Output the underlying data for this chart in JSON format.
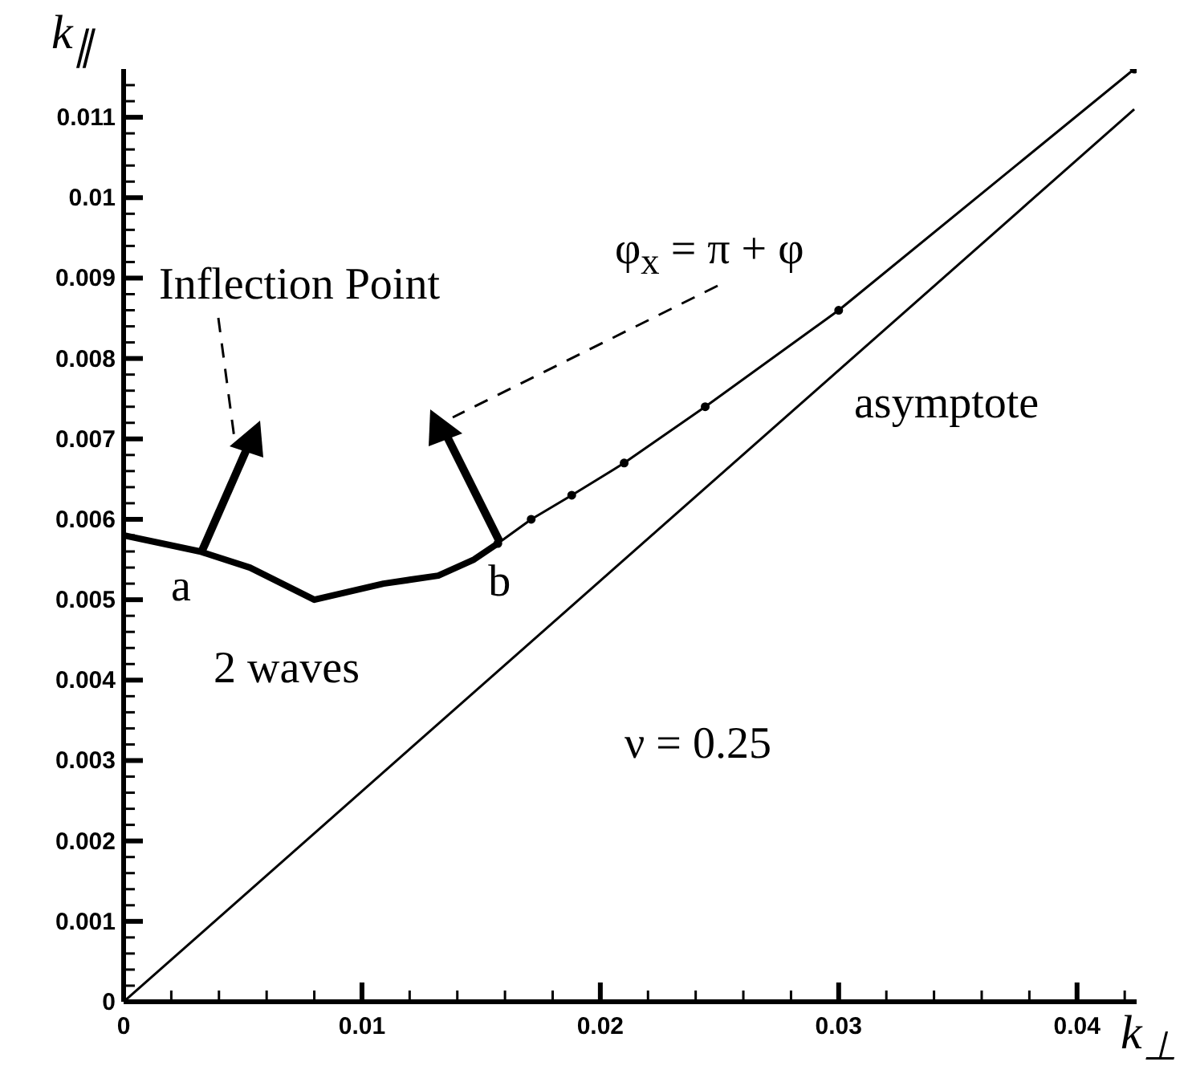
{
  "chart_data": {
    "type": "line",
    "xlabel": "k$_{⊥}$",
    "ylabel": "k$_{∥}$",
    "xlim": [
      0,
      0.0425
    ],
    "ylim": [
      0,
      0.0116
    ],
    "xticks": [
      0,
      {
        "value": 0.002,
        "label": null
      },
      {
        "value": 0.004,
        "label": null
      },
      {
        "value": 0.006,
        "label": null
      },
      {
        "value": 0.008,
        "label": null
      },
      0.01,
      {
        "value": 0.012,
        "label": null
      },
      {
        "value": 0.014,
        "label": null
      },
      {
        "value": 0.016,
        "label": null
      },
      {
        "value": 0.018,
        "label": null
      },
      0.02,
      {
        "value": 0.022,
        "label": null
      },
      {
        "value": 0.024,
        "label": null
      },
      {
        "value": 0.026,
        "label": null
      },
      {
        "value": 0.028,
        "label": null
      },
      0.03,
      {
        "value": 0.032,
        "label": null
      },
      {
        "value": 0.034,
        "label": null
      },
      {
        "value": 0.036,
        "label": null
      },
      {
        "value": 0.038,
        "label": null
      },
      0.04,
      {
        "value": 0.042,
        "label": null
      }
    ],
    "yticks": [
      0,
      {
        "value": 0.0002,
        "label": null
      },
      {
        "value": 0.0004,
        "label": null
      },
      {
        "value": 0.0006,
        "label": null
      },
      {
        "value": 0.0008,
        "label": null
      },
      0.001,
      {
        "value": 0.0012,
        "label": null
      },
      {
        "value": 0.0014,
        "label": null
      },
      {
        "value": 0.0016,
        "label": null
      },
      {
        "value": 0.0018,
        "label": null
      },
      0.002,
      {
        "value": 0.0022,
        "label": null
      },
      {
        "value": 0.0024,
        "label": null
      },
      {
        "value": 0.0026,
        "label": null
      },
      {
        "value": 0.0028,
        "label": null
      },
      0.003,
      {
        "value": 0.0032,
        "label": null
      },
      {
        "value": 0.0034,
        "label": null
      },
      {
        "value": 0.0036,
        "label": null
      },
      {
        "value": 0.0038,
        "label": null
      },
      0.004,
      {
        "value": 0.0042,
        "label": null
      },
      {
        "value": 0.0044,
        "label": null
      },
      {
        "value": 0.0046,
        "label": null
      },
      {
        "value": 0.0048,
        "label": null
      },
      0.005,
      {
        "value": 0.0052,
        "label": null
      },
      {
        "value": 0.0054,
        "label": null
      },
      {
        "value": 0.0056,
        "label": null
      },
      {
        "value": 0.0058,
        "label": null
      },
      0.006,
      {
        "value": 0.0062,
        "label": null
      },
      {
        "value": 0.0064,
        "label": null
      },
      {
        "value": 0.0066,
        "label": null
      },
      {
        "value": 0.0068,
        "label": null
      },
      0.007,
      {
        "value": 0.0072,
        "label": null
      },
      {
        "value": 0.0074,
        "label": null
      },
      {
        "value": 0.0076,
        "label": null
      },
      {
        "value": 0.0078,
        "label": null
      },
      0.008,
      {
        "value": 0.0082,
        "label": null
      },
      {
        "value": 0.0084,
        "label": null
      },
      {
        "value": 0.0086,
        "label": null
      },
      {
        "value": 0.0088,
        "label": null
      },
      0.009,
      {
        "value": 0.0092,
        "label": null
      },
      {
        "value": 0.0094,
        "label": null
      },
      {
        "value": 0.0096,
        "label": null
      },
      {
        "value": 0.0098,
        "label": null
      },
      0.01,
      {
        "value": 0.0102,
        "label": null
      },
      {
        "value": 0.0104,
        "label": null
      },
      {
        "value": 0.0106,
        "label": null
      },
      {
        "value": 0.0108,
        "label": null
      },
      0.011,
      {
        "value": 0.0112,
        "label": null
      },
      {
        "value": 0.0114,
        "label": null
      }
    ],
    "line_style": "solid",
    "series": [
      {
        "color": "#000000",
        "marker": "none",
        "x": [
          0,
          0.0032,
          0.0053,
          0.008,
          0.0109,
          0.0132,
          0.0147,
          0.0157
        ],
        "values": [
          0.0058,
          0.0056,
          0.0054,
          0.005,
          0.0052,
          0.0053,
          0.0055,
          0.0057
        ]
      },
      {
        "color": "#000000",
        "marker": "circle",
        "x": [
          0.0157,
          0.0171,
          0.0188,
          0.021,
          0.0244,
          0.03,
          0.0424
        ],
        "values": [
          0.0057,
          0.006,
          0.0063,
          0.0067,
          0.0074,
          0.0086,
          0.0116
        ]
      },
      {
        "color": "#000000",
        "marker": "none",
        "x": [
          0,
          0.0424
        ],
        "values": [
          0,
          0.0111
        ]
      }
    ],
    "annotations": [
      "Inflection Point",
      "φ$_{x}$ = π + φ",
      {
        "text": "a",
        "x": 0.0032,
        "y": 0.0056
      },
      {
        "text": "b",
        "x": 0.0157,
        "y": 0.0057
      },
      "2 waves",
      "asymptote",
      "ν = 0.25"
    ]
  }
}
